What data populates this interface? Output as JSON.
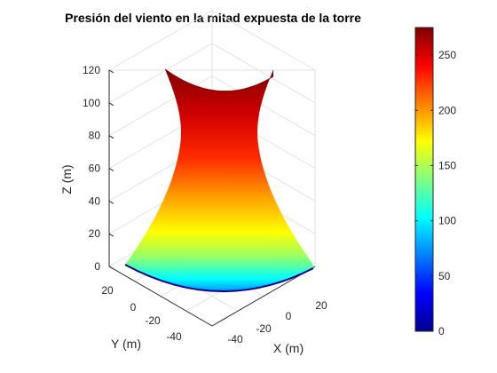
{
  "chart_data": {
    "type": "surface",
    "title": "Presión del viento en la mitad expuesta de la torre",
    "xlabel": "X (m)",
    "ylabel": "Y (m)",
    "zlabel": "Z (m)",
    "x_ticks": [
      "-40",
      "-20",
      "0",
      "20"
    ],
    "y_ticks": [
      "-40",
      "-20",
      "0",
      "20"
    ],
    "z_ticks": [
      "0",
      "20",
      "40",
      "60",
      "80",
      "100",
      "120"
    ],
    "zlim": [
      0,
      120
    ],
    "grid": true,
    "colormap": "jet",
    "colorbar": {
      "min": 0,
      "max": 275,
      "ticks": [
        "0",
        "50",
        "100",
        "150",
        "200",
        "250"
      ],
      "tick_values": [
        0,
        50,
        100,
        150,
        200,
        250
      ]
    },
    "surface": {
      "shape": "hyperboloid tower (half, exposed side)",
      "height_range": [
        0,
        115
      ],
      "base_radius_approx": 45,
      "throat_radius_approx": 23,
      "top_radius_approx": 32,
      "pressure_at_base_approx": 0,
      "pressure_at_top_approx": 275
    }
  }
}
